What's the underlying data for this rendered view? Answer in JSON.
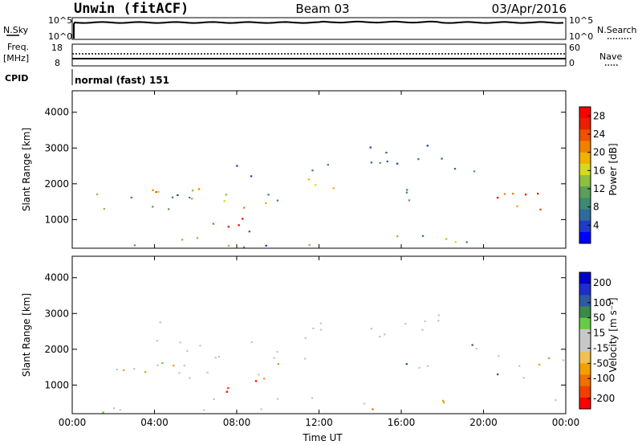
{
  "header": {
    "site": "Unwin (fitACF)",
    "beam": "Beam 03",
    "date": "03/Apr/2016"
  },
  "strip_labels": {
    "nsky": "N.Sky",
    "nsky_ticks": [
      "10^5",
      "10^0"
    ],
    "freq": "Freq.",
    "freq_unit": "[MHz]",
    "freq_ticks": [
      "18",
      "8"
    ],
    "cpid": "CPID",
    "nsearch": "N.Search",
    "nsearch_ticks": [
      "10^5",
      "10^0"
    ],
    "nave": "Nave",
    "nave_ticks": [
      "60",
      "0"
    ],
    "cpid_text": "normal (fast) 151"
  },
  "colors": {
    "power_scale": [
      "#0000ff",
      "#1e3cc8",
      "#2e6c9c",
      "#3d8a74",
      "#5aa058",
      "#8cc040",
      "#d8d820",
      "#f0b000",
      "#f08000",
      "#f05000",
      "#e82000",
      "#ff0000"
    ],
    "velocity_scale": [
      "#ff0000",
      "#f04000",
      "#f07000",
      "#f0a000",
      "#f0c050",
      "#c8c8c8",
      "#c8c8c8",
      "#66cc44",
      "#3a8a4a",
      "#2e5aa0",
      "#1e2ecc",
      "#0000cc"
    ]
  },
  "chart_data": [
    {
      "type": "heatmap",
      "name": "power",
      "ylabel": "Slant Range [km]",
      "xlabel": "",
      "x_ticks": [
        "00:00",
        "04:00",
        "08:00",
        "12:00",
        "16:00",
        "20:00",
        "00:00"
      ],
      "y_ticks": [
        1000,
        2000,
        3000,
        4000
      ],
      "ylim": [
        200,
        4600
      ],
      "xlim_hours": [
        0,
        24
      ],
      "colorbar_label": "Power [dB]",
      "colorbar_ticks": [
        4,
        8,
        12,
        16,
        20,
        24,
        28
      ],
      "colorbar_range": [
        0,
        30
      ]
    },
    {
      "type": "heatmap",
      "name": "velocity",
      "ylabel": "Slant Range [km]",
      "xlabel": "Time UT",
      "x_ticks": [
        "00:00",
        "04:00",
        "08:00",
        "12:00",
        "16:00",
        "20:00",
        "00:00"
      ],
      "y_ticks": [
        1000,
        2000,
        3000,
        4000
      ],
      "ylim": [
        200,
        4600
      ],
      "xlim_hours": [
        0,
        24
      ],
      "colorbar_label": "Velocity [m s⁻¹]",
      "colorbar_ticks": [
        200,
        100,
        50,
        15,
        -15,
        -50,
        -100,
        -200
      ]
    }
  ]
}
